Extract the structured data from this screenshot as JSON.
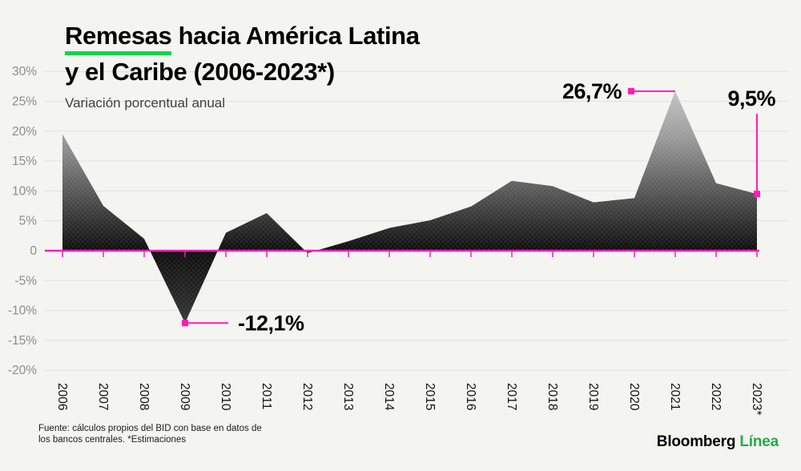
{
  "header": {
    "title_underlined": "Remesas",
    "title_rest": " hacia América Latina",
    "title_line2": "y el Caribe (2006-2023*)",
    "subtitle": "Variación porcentual anual"
  },
  "footer": {
    "source_line1": "Fuente: cálculos propios del BID con base en datos de",
    "source_line2": "los bancos centrales. *Estimaciones",
    "logo_black": "Bloomberg",
    "logo_green": "Línea"
  },
  "colors": {
    "background": "#f4f4f1",
    "grid": "#e1e1de",
    "accent_pink": "#ff1db4",
    "underline_green": "#00d848",
    "logo_green": "#21ac47",
    "axis_label": "#8d8d8d",
    "area_top": "#d4d4d4",
    "area_mid": "#9b9b9b",
    "area_zero": "#0d0d0d",
    "area_bottom": "#505050"
  },
  "chart_data": {
    "type": "area",
    "title": "Remesas hacia América Latina y el Caribe (2006-2023*)",
    "subtitle": "Variación porcentual anual",
    "unit": "%",
    "categories": [
      "2006",
      "2007",
      "2008",
      "2009",
      "2010",
      "2011",
      "2012",
      "2013",
      "2014",
      "2015",
      "2016",
      "2017",
      "2018",
      "2019",
      "2020",
      "2021",
      "2022",
      "2023*"
    ],
    "values": [
      19.5,
      7.5,
      2.0,
      -12.1,
      3.0,
      6.3,
      -0.4,
      1.6,
      3.8,
      5.1,
      7.4,
      11.7,
      10.8,
      8.1,
      8.8,
      26.7,
      11.3,
      9.5
    ],
    "ylim": [
      -20,
      30
    ],
    "ytick_step": 5,
    "ytick_labels": [
      "30%",
      "25%",
      "20%",
      "15%",
      "10%",
      "5%",
      "0",
      "-5%",
      "-10%",
      "-15%",
      "-20%"
    ],
    "grid": true,
    "annotations": [
      {
        "label": "-12,1%",
        "category": "2009",
        "value": -12.1,
        "placement": "right"
      },
      {
        "label": "26,7%",
        "category": "2021",
        "value": 26.7,
        "placement": "left"
      },
      {
        "label": "9,5%",
        "category": "2023*",
        "value": 9.5,
        "placement": "above"
      }
    ]
  }
}
